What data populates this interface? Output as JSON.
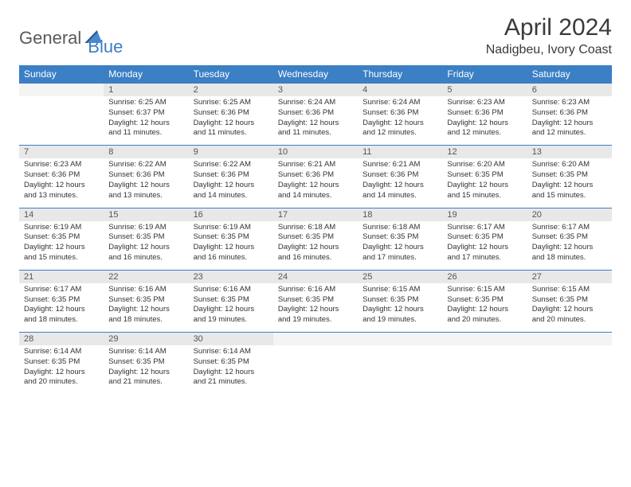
{
  "brand": {
    "part1": "General",
    "part2": "Blue"
  },
  "title": "April 2024",
  "location": "Nadigbeu, Ivory Coast",
  "colors": {
    "header_bg": "#3b7fc4",
    "header_text": "#ffffff",
    "daynum_bg": "#e8e8e8",
    "row_divider": "#3b7fc4",
    "body_text": "#333333",
    "title_text": "#3a3a3a"
  },
  "weekdays": [
    "Sunday",
    "Monday",
    "Tuesday",
    "Wednesday",
    "Thursday",
    "Friday",
    "Saturday"
  ],
  "weeks": [
    {
      "nums": [
        "",
        "1",
        "2",
        "3",
        "4",
        "5",
        "6"
      ],
      "cells": [
        null,
        {
          "sr": "Sunrise: 6:25 AM",
          "ss": "Sunset: 6:37 PM",
          "d1": "Daylight: 12 hours",
          "d2": "and 11 minutes."
        },
        {
          "sr": "Sunrise: 6:25 AM",
          "ss": "Sunset: 6:36 PM",
          "d1": "Daylight: 12 hours",
          "d2": "and 11 minutes."
        },
        {
          "sr": "Sunrise: 6:24 AM",
          "ss": "Sunset: 6:36 PM",
          "d1": "Daylight: 12 hours",
          "d2": "and 11 minutes."
        },
        {
          "sr": "Sunrise: 6:24 AM",
          "ss": "Sunset: 6:36 PM",
          "d1": "Daylight: 12 hours",
          "d2": "and 12 minutes."
        },
        {
          "sr": "Sunrise: 6:23 AM",
          "ss": "Sunset: 6:36 PM",
          "d1": "Daylight: 12 hours",
          "d2": "and 12 minutes."
        },
        {
          "sr": "Sunrise: 6:23 AM",
          "ss": "Sunset: 6:36 PM",
          "d1": "Daylight: 12 hours",
          "d2": "and 12 minutes."
        }
      ]
    },
    {
      "nums": [
        "7",
        "8",
        "9",
        "10",
        "11",
        "12",
        "13"
      ],
      "cells": [
        {
          "sr": "Sunrise: 6:23 AM",
          "ss": "Sunset: 6:36 PM",
          "d1": "Daylight: 12 hours",
          "d2": "and 13 minutes."
        },
        {
          "sr": "Sunrise: 6:22 AM",
          "ss": "Sunset: 6:36 PM",
          "d1": "Daylight: 12 hours",
          "d2": "and 13 minutes."
        },
        {
          "sr": "Sunrise: 6:22 AM",
          "ss": "Sunset: 6:36 PM",
          "d1": "Daylight: 12 hours",
          "d2": "and 14 minutes."
        },
        {
          "sr": "Sunrise: 6:21 AM",
          "ss": "Sunset: 6:36 PM",
          "d1": "Daylight: 12 hours",
          "d2": "and 14 minutes."
        },
        {
          "sr": "Sunrise: 6:21 AM",
          "ss": "Sunset: 6:36 PM",
          "d1": "Daylight: 12 hours",
          "d2": "and 14 minutes."
        },
        {
          "sr": "Sunrise: 6:20 AM",
          "ss": "Sunset: 6:35 PM",
          "d1": "Daylight: 12 hours",
          "d2": "and 15 minutes."
        },
        {
          "sr": "Sunrise: 6:20 AM",
          "ss": "Sunset: 6:35 PM",
          "d1": "Daylight: 12 hours",
          "d2": "and 15 minutes."
        }
      ]
    },
    {
      "nums": [
        "14",
        "15",
        "16",
        "17",
        "18",
        "19",
        "20"
      ],
      "cells": [
        {
          "sr": "Sunrise: 6:19 AM",
          "ss": "Sunset: 6:35 PM",
          "d1": "Daylight: 12 hours",
          "d2": "and 15 minutes."
        },
        {
          "sr": "Sunrise: 6:19 AM",
          "ss": "Sunset: 6:35 PM",
          "d1": "Daylight: 12 hours",
          "d2": "and 16 minutes."
        },
        {
          "sr": "Sunrise: 6:19 AM",
          "ss": "Sunset: 6:35 PM",
          "d1": "Daylight: 12 hours",
          "d2": "and 16 minutes."
        },
        {
          "sr": "Sunrise: 6:18 AM",
          "ss": "Sunset: 6:35 PM",
          "d1": "Daylight: 12 hours",
          "d2": "and 16 minutes."
        },
        {
          "sr": "Sunrise: 6:18 AM",
          "ss": "Sunset: 6:35 PM",
          "d1": "Daylight: 12 hours",
          "d2": "and 17 minutes."
        },
        {
          "sr": "Sunrise: 6:17 AM",
          "ss": "Sunset: 6:35 PM",
          "d1": "Daylight: 12 hours",
          "d2": "and 17 minutes."
        },
        {
          "sr": "Sunrise: 6:17 AM",
          "ss": "Sunset: 6:35 PM",
          "d1": "Daylight: 12 hours",
          "d2": "and 18 minutes."
        }
      ]
    },
    {
      "nums": [
        "21",
        "22",
        "23",
        "24",
        "25",
        "26",
        "27"
      ],
      "cells": [
        {
          "sr": "Sunrise: 6:17 AM",
          "ss": "Sunset: 6:35 PM",
          "d1": "Daylight: 12 hours",
          "d2": "and 18 minutes."
        },
        {
          "sr": "Sunrise: 6:16 AM",
          "ss": "Sunset: 6:35 PM",
          "d1": "Daylight: 12 hours",
          "d2": "and 18 minutes."
        },
        {
          "sr": "Sunrise: 6:16 AM",
          "ss": "Sunset: 6:35 PM",
          "d1": "Daylight: 12 hours",
          "d2": "and 19 minutes."
        },
        {
          "sr": "Sunrise: 6:16 AM",
          "ss": "Sunset: 6:35 PM",
          "d1": "Daylight: 12 hours",
          "d2": "and 19 minutes."
        },
        {
          "sr": "Sunrise: 6:15 AM",
          "ss": "Sunset: 6:35 PM",
          "d1": "Daylight: 12 hours",
          "d2": "and 19 minutes."
        },
        {
          "sr": "Sunrise: 6:15 AM",
          "ss": "Sunset: 6:35 PM",
          "d1": "Daylight: 12 hours",
          "d2": "and 20 minutes."
        },
        {
          "sr": "Sunrise: 6:15 AM",
          "ss": "Sunset: 6:35 PM",
          "d1": "Daylight: 12 hours",
          "d2": "and 20 minutes."
        }
      ]
    },
    {
      "nums": [
        "28",
        "29",
        "30",
        "",
        "",
        "",
        ""
      ],
      "cells": [
        {
          "sr": "Sunrise: 6:14 AM",
          "ss": "Sunset: 6:35 PM",
          "d1": "Daylight: 12 hours",
          "d2": "and 20 minutes."
        },
        {
          "sr": "Sunrise: 6:14 AM",
          "ss": "Sunset: 6:35 PM",
          "d1": "Daylight: 12 hours",
          "d2": "and 21 minutes."
        },
        {
          "sr": "Sunrise: 6:14 AM",
          "ss": "Sunset: 6:35 PM",
          "d1": "Daylight: 12 hours",
          "d2": "and 21 minutes."
        },
        null,
        null,
        null,
        null
      ]
    }
  ]
}
